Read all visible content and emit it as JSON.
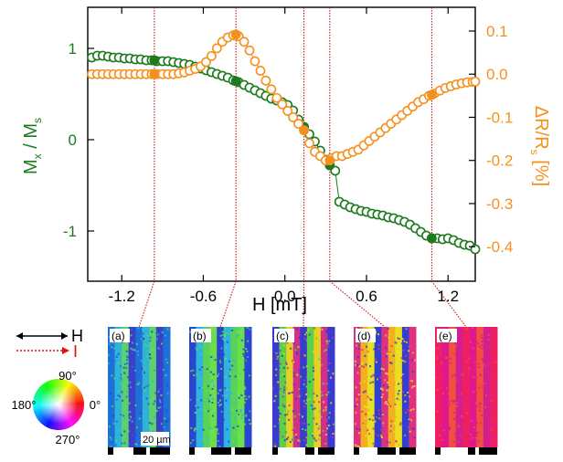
{
  "chart_data": {
    "type": "scatter",
    "xlabel": "H [mT]",
    "xlim": [
      -1.45,
      1.4
    ],
    "x_ticks": [
      -1.2,
      -0.6,
      0.0,
      0.6,
      1.2
    ],
    "x_tick_labels": [
      "-1.2",
      "-0.6",
      "0.0",
      "0.6",
      "1.2"
    ],
    "y_left": {
      "label_main": "M",
      "label_sub": "x",
      "label_mid": " / M",
      "label_sub2": "s",
      "lim": [
        -1.55,
        1.45
      ],
      "ticks": [
        1,
        0,
        -1
      ],
      "tick_labels": [
        "1",
        "0",
        "-1"
      ],
      "color": "#1e7a1e"
    },
    "y_right": {
      "label_main": "ΔR/R",
      "label_sub": "s",
      "label_unit": " [%]",
      "lim": [
        -0.48,
        0.155
      ],
      "ticks": [
        0.1,
        0.0,
        -0.1,
        -0.2,
        -0.3,
        -0.4
      ],
      "tick_labels": [
        "0.1",
        "0.0",
        "-0.1",
        "-0.2",
        "-0.3",
        "-0.4"
      ],
      "color": "#f5901e"
    },
    "series": [
      {
        "axis": "left",
        "color": "#1e7a1e",
        "points": [
          [
            -1.42,
            0.9
          ],
          [
            -1.38,
            0.92
          ],
          [
            -1.34,
            0.92
          ],
          [
            -1.3,
            0.91
          ],
          [
            -1.26,
            0.9
          ],
          [
            -1.22,
            0.9
          ],
          [
            -1.18,
            0.89
          ],
          [
            -1.14,
            0.89
          ],
          [
            -1.1,
            0.88
          ],
          [
            -1.06,
            0.88
          ],
          [
            -1.02,
            0.87
          ],
          [
            -0.98,
            0.87
          ],
          [
            -0.94,
            0.86
          ],
          [
            -0.9,
            0.86
          ],
          [
            -0.86,
            0.86
          ],
          [
            -0.82,
            0.85
          ],
          [
            -0.78,
            0.84
          ],
          [
            -0.74,
            0.83
          ],
          [
            -0.7,
            0.82
          ],
          [
            -0.66,
            0.8
          ],
          [
            -0.62,
            0.78
          ],
          [
            -0.58,
            0.76
          ],
          [
            -0.54,
            0.74
          ],
          [
            -0.5,
            0.72
          ],
          [
            -0.46,
            0.7
          ],
          [
            -0.42,
            0.68
          ],
          [
            -0.38,
            0.65
          ],
          [
            -0.34,
            0.63
          ],
          [
            -0.3,
            0.6
          ],
          [
            -0.26,
            0.57
          ],
          [
            -0.22,
            0.54
          ],
          [
            -0.18,
            0.51
          ],
          [
            -0.14,
            0.48
          ],
          [
            -0.1,
            0.45
          ],
          [
            -0.06,
            0.43
          ],
          [
            -0.02,
            0.41
          ],
          [
            0.02,
            0.38
          ],
          [
            0.06,
            0.32
          ],
          [
            0.1,
            0.22
          ],
          [
            0.14,
            0.14
          ],
          [
            0.18,
            0.06
          ],
          [
            0.22,
            -0.02
          ],
          [
            0.26,
            -0.12
          ],
          [
            0.3,
            -0.22
          ],
          [
            0.33,
            -0.28
          ],
          [
            0.37,
            -0.34
          ],
          [
            0.4,
            -0.68
          ],
          [
            0.44,
            -0.71
          ],
          [
            0.48,
            -0.74
          ],
          [
            0.52,
            -0.76
          ],
          [
            0.56,
            -0.78
          ],
          [
            0.6,
            -0.79
          ],
          [
            0.64,
            -0.81
          ],
          [
            0.68,
            -0.82
          ],
          [
            0.72,
            -0.83
          ],
          [
            0.76,
            -0.85
          ],
          [
            0.8,
            -0.86
          ],
          [
            0.84,
            -0.88
          ],
          [
            0.88,
            -0.9
          ],
          [
            0.92,
            -0.93
          ],
          [
            0.96,
            -0.97
          ],
          [
            1.0,
            -1.01
          ],
          [
            1.04,
            -1.05
          ],
          [
            1.08,
            -1.08
          ],
          [
            1.12,
            -1.08
          ],
          [
            1.16,
            -1.09
          ],
          [
            1.2,
            -1.08
          ],
          [
            1.24,
            -1.1
          ],
          [
            1.28,
            -1.13
          ],
          [
            1.32,
            -1.15
          ],
          [
            1.36,
            -1.16
          ],
          [
            1.4,
            -1.2
          ]
        ],
        "filled": [
          [
            -0.96,
            0.87
          ],
          [
            -0.36,
            0.64
          ],
          [
            0.14,
            0.14
          ],
          [
            0.33,
            -0.28
          ],
          [
            1.08,
            -1.08
          ]
        ]
      },
      {
        "axis": "right",
        "color": "#f5901e",
        "points": [
          [
            -1.42,
            0.0
          ],
          [
            -1.38,
            0.0
          ],
          [
            -1.34,
            0.0
          ],
          [
            -1.3,
            0.0
          ],
          [
            -1.26,
            0.0
          ],
          [
            -1.22,
            0.0
          ],
          [
            -1.18,
            0.0
          ],
          [
            -1.14,
            0.0
          ],
          [
            -1.1,
            0.0
          ],
          [
            -1.06,
            0.0
          ],
          [
            -1.02,
            0.0
          ],
          [
            -0.98,
            0.0
          ],
          [
            -0.94,
            0.0
          ],
          [
            -0.9,
            0.0
          ],
          [
            -0.86,
            0.0
          ],
          [
            -0.82,
            0.0
          ],
          [
            -0.78,
            0.002
          ],
          [
            -0.74,
            0.004
          ],
          [
            -0.7,
            0.008
          ],
          [
            -0.66,
            0.012
          ],
          [
            -0.62,
            0.018
          ],
          [
            -0.58,
            0.028
          ],
          [
            -0.54,
            0.042
          ],
          [
            -0.5,
            0.06
          ],
          [
            -0.46,
            0.075
          ],
          [
            -0.42,
            0.085
          ],
          [
            -0.38,
            0.09
          ],
          [
            -0.34,
            0.088
          ],
          [
            -0.3,
            0.075
          ],
          [
            -0.26,
            0.055
          ],
          [
            -0.22,
            0.03
          ],
          [
            -0.18,
            0.008
          ],
          [
            -0.14,
            -0.015
          ],
          [
            -0.1,
            -0.035
          ],
          [
            -0.06,
            -0.055
          ],
          [
            -0.02,
            -0.07
          ],
          [
            0.02,
            -0.085
          ],
          [
            0.06,
            -0.1
          ],
          [
            0.1,
            -0.115
          ],
          [
            0.14,
            -0.13
          ],
          [
            0.18,
            -0.16
          ],
          [
            0.22,
            -0.18
          ],
          [
            0.26,
            -0.19
          ],
          [
            0.3,
            -0.2
          ],
          [
            0.34,
            -0.195
          ],
          [
            0.38,
            -0.19
          ],
          [
            0.42,
            -0.19
          ],
          [
            0.46,
            -0.185
          ],
          [
            0.5,
            -0.18
          ],
          [
            0.54,
            -0.175
          ],
          [
            0.58,
            -0.165
          ],
          [
            0.62,
            -0.155
          ],
          [
            0.66,
            -0.145
          ],
          [
            0.7,
            -0.135
          ],
          [
            0.74,
            -0.125
          ],
          [
            0.78,
            -0.115
          ],
          [
            0.82,
            -0.105
          ],
          [
            0.86,
            -0.095
          ],
          [
            0.9,
            -0.085
          ],
          [
            0.94,
            -0.075
          ],
          [
            0.98,
            -0.065
          ],
          [
            1.02,
            -0.058
          ],
          [
            1.06,
            -0.05
          ],
          [
            1.1,
            -0.045
          ],
          [
            1.14,
            -0.038
          ],
          [
            1.18,
            -0.032
          ],
          [
            1.22,
            -0.028
          ],
          [
            1.26,
            -0.024
          ],
          [
            1.3,
            -0.021
          ],
          [
            1.34,
            -0.019
          ],
          [
            1.38,
            -0.018
          ],
          [
            1.4,
            -0.017
          ]
        ],
        "filled": [
          [
            -0.96,
            0.0
          ],
          [
            -0.36,
            0.092
          ],
          [
            0.14,
            -0.13
          ],
          [
            0.33,
            -0.2
          ],
          [
            1.08,
            -0.048
          ]
        ]
      }
    ],
    "marker_fields": [
      -0.96,
      -0.36,
      0.14,
      0.33,
      1.08
    ],
    "connector_color": "#c00000"
  },
  "legend": {
    "field_label": "H",
    "current_label": "I",
    "angles": [
      "90°",
      "180°",
      "0°",
      "270°"
    ]
  },
  "panels": [
    {
      "label": "(a)",
      "palette": [
        "#1f6fd8",
        "#2fb4d8",
        "#5cd26a",
        "#3a40c8"
      ]
    },
    {
      "label": "(b)",
      "palette": [
        "#2a46d0",
        "#2fb4e0",
        "#58d25a",
        "#6be04a"
      ]
    },
    {
      "label": "(c)",
      "palette": [
        "#3a3ad0",
        "#59d24a",
        "#e8d020",
        "#d0308a"
      ]
    },
    {
      "label": "(d)",
      "palette": [
        "#e03080",
        "#f0b020",
        "#e8e020",
        "#3040d0"
      ]
    },
    {
      "label": "(e)",
      "palette": [
        "#f02060",
        "#e01890",
        "#f05040",
        "#d02090"
      ]
    }
  ],
  "scalebar_label": "20 µm"
}
